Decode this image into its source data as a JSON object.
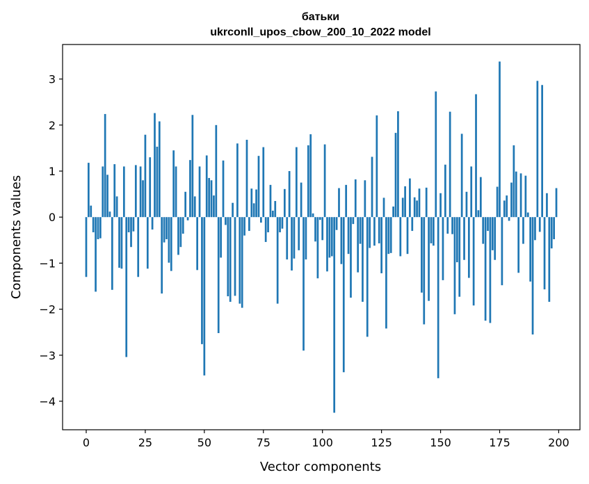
{
  "chart_data": {
    "type": "bar",
    "title_line1": "батьки",
    "title_line2": "ukrconll_upos_cbow_200_10_2022 model",
    "xlabel": "Vector components",
    "ylabel": "Components values",
    "xlim": [
      -10,
      209
    ],
    "ylim": [
      -4.62,
      3.75
    ],
    "xticks": [
      0,
      25,
      50,
      75,
      100,
      125,
      150,
      175,
      200
    ],
    "xtick_labels": [
      "0",
      "25",
      "50",
      "75",
      "100",
      "125",
      "150",
      "175",
      "200"
    ],
    "yticks": [
      -4,
      -3,
      -2,
      -1,
      0,
      1,
      2,
      3
    ],
    "ytick_labels": [
      "−4",
      "−3",
      "−2",
      "−1",
      "0",
      "1",
      "2",
      "3"
    ],
    "bar_color": "#1f77b4",
    "x": [
      0,
      1,
      2,
      3,
      4,
      5,
      6,
      7,
      8,
      9,
      10,
      11,
      12,
      13,
      14,
      15,
      16,
      17,
      18,
      19,
      20,
      21,
      22,
      23,
      24,
      25,
      26,
      27,
      28,
      29,
      30,
      31,
      32,
      33,
      34,
      35,
      36,
      37,
      38,
      39,
      40,
      41,
      42,
      43,
      44,
      45,
      46,
      47,
      48,
      49,
      50,
      51,
      52,
      53,
      54,
      55,
      56,
      57,
      58,
      59,
      60,
      61,
      62,
      63,
      64,
      65,
      66,
      67,
      68,
      69,
      70,
      71,
      72,
      73,
      74,
      75,
      76,
      77,
      78,
      79,
      80,
      81,
      82,
      83,
      84,
      85,
      86,
      87,
      88,
      89,
      90,
      91,
      92,
      93,
      94,
      95,
      96,
      97,
      98,
      99,
      100,
      101,
      102,
      103,
      104,
      105,
      106,
      107,
      108,
      109,
      110,
      111,
      112,
      113,
      114,
      115,
      116,
      117,
      118,
      119,
      120,
      121,
      122,
      123,
      124,
      125,
      126,
      127,
      128,
      129,
      130,
      131,
      132,
      133,
      134,
      135,
      136,
      137,
      138,
      139,
      140,
      141,
      142,
      143,
      144,
      145,
      146,
      147,
      148,
      149,
      150,
      151,
      152,
      153,
      154,
      155,
      156,
      157,
      158,
      159,
      160,
      161,
      162,
      163,
      164,
      165,
      166,
      167,
      168,
      169,
      170,
      171,
      172,
      173,
      174,
      175,
      176,
      177,
      178,
      179,
      180,
      181,
      182,
      183,
      184,
      185,
      186,
      187,
      188,
      189,
      190,
      191,
      192,
      193,
      194,
      195,
      196,
      197,
      198,
      199
    ],
    "values": [
      -1.3,
      1.18,
      0.25,
      -0.33,
      -1.62,
      -0.48,
      -0.46,
      1.1,
      2.24,
      0.92,
      0.12,
      -1.58,
      1.15,
      0.45,
      -1.1,
      -1.12,
      1.1,
      -3.04,
      -0.33,
      -0.65,
      -0.31,
      1.13,
      -1.3,
      1.1,
      0.8,
      1.79,
      -1.12,
      1.3,
      -0.27,
      2.26,
      1.53,
      2.08,
      -1.66,
      -0.55,
      -0.48,
      -0.99,
      -1.17,
      1.45,
      1.1,
      -0.82,
      -0.65,
      -0.36,
      0.55,
      -0.07,
      1.24,
      2.22,
      0.45,
      -1.15,
      1.1,
      -2.76,
      -3.44,
      1.34,
      0.85,
      0.8,
      0.47,
      2.0,
      -2.52,
      -0.88,
      1.23,
      -0.17,
      -1.72,
      -1.84,
      0.31,
      -1.71,
      1.6,
      -1.88,
      -1.97,
      -0.4,
      1.68,
      -0.3,
      0.62,
      0.3,
      0.6,
      1.33,
      -0.12,
      1.52,
      -0.54,
      -0.33,
      0.7,
      0.14,
      0.35,
      -1.88,
      -0.33,
      -0.25,
      0.61,
      -0.92,
      1.0,
      -1.16,
      -0.9,
      1.52,
      -0.72,
      0.75,
      -2.9,
      -0.92,
      1.56,
      1.8,
      0.08,
      -0.53,
      -1.33,
      -0.06,
      -0.5,
      1.58,
      -1.18,
      -0.88,
      -0.85,
      -4.25,
      -0.28,
      0.63,
      -1.02,
      -3.37,
      0.7,
      -0.8,
      -1.75,
      -0.15,
      0.82,
      -1.2,
      -0.58,
      -1.84,
      0.8,
      -2.6,
      -0.67,
      1.31,
      -0.62,
      2.21,
      -0.57,
      -1.22,
      0.42,
      -2.42,
      -0.8,
      -0.78,
      0.23,
      1.83,
      2.3,
      -0.85,
      0.42,
      0.67,
      -0.8,
      0.84,
      -0.3,
      0.43,
      0.36,
      0.62,
      -1.64,
      -2.33,
      0.64,
      -1.82,
      -0.57,
      -0.62,
      2.73,
      -3.5,
      0.52,
      -1.37,
      1.14,
      -0.36,
      2.29,
      -0.37,
      -2.11,
      -0.98,
      -1.73,
      1.81,
      -0.93,
      0.55,
      -1.32,
      1.1,
      -1.92,
      2.67,
      0.15,
      0.87,
      -0.58,
      -2.25,
      -0.3,
      -2.3,
      -0.72,
      -0.93,
      0.66,
      3.38,
      -1.48,
      0.36,
      0.47,
      -0.08,
      0.75,
      1.56,
      0.99,
      -1.21,
      0.95,
      -0.58,
      0.9,
      0.1,
      -1.4,
      -2.55,
      -0.5,
      2.96,
      -0.32,
      2.87,
      -1.57,
      0.52,
      -1.84,
      -0.68,
      -0.48,
      0.63
    ]
  }
}
